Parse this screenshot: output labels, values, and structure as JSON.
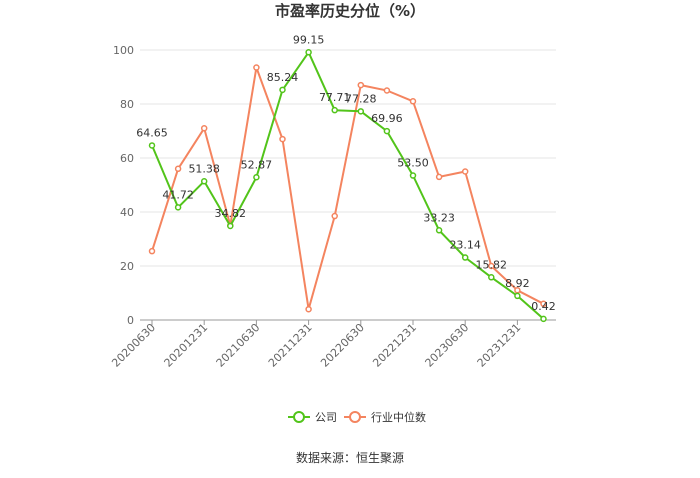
{
  "chart_data": {
    "type": "line",
    "title": "市盈率历史分位（%）",
    "xlabel": "",
    "ylabel": "",
    "ylim": [
      0,
      100
    ],
    "yticks": [
      0,
      20,
      40,
      60,
      80,
      100
    ],
    "x_tick_labels": [
      "20200630",
      "20201231",
      "20210630",
      "20211231",
      "20220630",
      "20221231",
      "20230630",
      "20231231"
    ],
    "grid": true,
    "legend_position": "bottom",
    "series": [
      {
        "name": "公司",
        "color": "#52c41a",
        "values": [
          64.65,
          41.72,
          51.38,
          34.82,
          52.87,
          85.24,
          99.15,
          77.71,
          77.28,
          69.96,
          53.5,
          33.23,
          23.14,
          15.82,
          8.92,
          0.42
        ],
        "labels": [
          "64.65",
          "41.72",
          "51.38",
          "34.82",
          "52.87",
          "85.24",
          "99.15",
          "77.71",
          "77.28",
          "69.96",
          "53.50",
          "33.23",
          "23.14",
          "15.82",
          "8.92",
          "0.42"
        ]
      },
      {
        "name": "行业中位数",
        "color": "#f4845f",
        "values": [
          25.5,
          56,
          71,
          35,
          93.5,
          67,
          4,
          38.5,
          87,
          85,
          81,
          53,
          55,
          20,
          11,
          6
        ]
      }
    ]
  },
  "source": "数据来源：恒生聚源"
}
